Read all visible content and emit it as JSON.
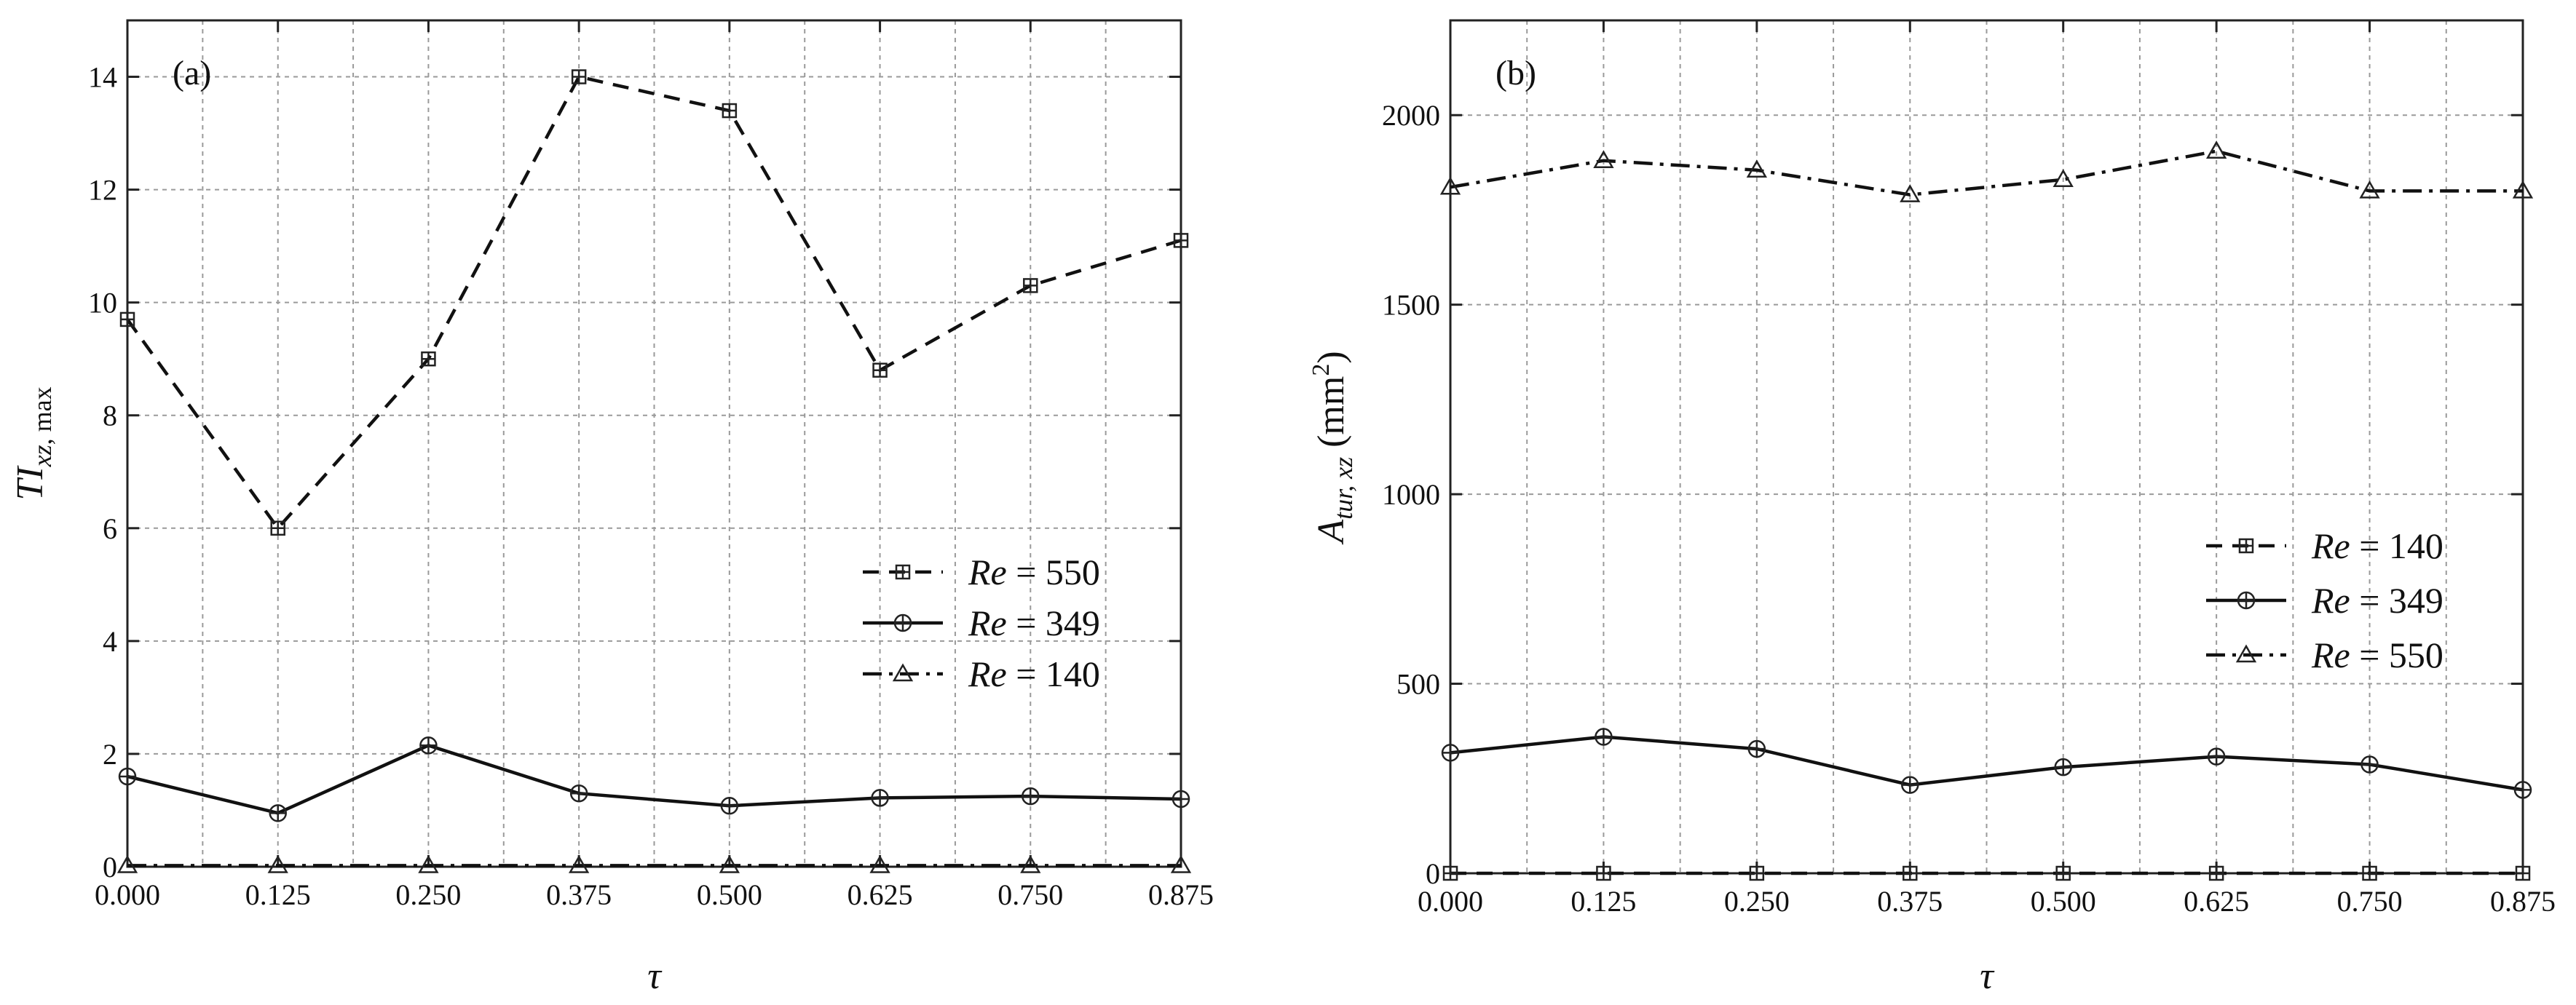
{
  "chart_data": [
    {
      "type": "line",
      "panel_label": "(a)",
      "xlabel": "τ",
      "ylabel": "TI_xz,max",
      "ylabel_main": "TI",
      "ylabel_sub": "xz",
      "ylabel_tail": ", max",
      "x": [
        0.0,
        0.125,
        0.25,
        0.375,
        0.5,
        0.625,
        0.75,
        0.875
      ],
      "x_tick_labels": [
        "0.000",
        "0.125",
        "0.250",
        "0.375",
        "0.500",
        "0.625",
        "0.750",
        "0.875"
      ],
      "xlim": [
        0,
        0.875
      ],
      "ylim": [
        0,
        15
      ],
      "y_ticks": [
        0,
        2,
        4,
        6,
        8,
        10,
        12,
        14
      ],
      "y_tick_labels": [
        "0",
        "2",
        "4",
        "6",
        "8",
        "10",
        "12",
        "14"
      ],
      "grid": true,
      "legend_position": "center-right",
      "series": [
        {
          "name": "Re = 550",
          "re_value": "550",
          "style": "dashed",
          "marker": "square-plus",
          "values": [
            9.7,
            6.0,
            9.0,
            14.0,
            13.4,
            8.8,
            10.3,
            11.1
          ]
        },
        {
          "name": "Re = 349",
          "re_value": "349",
          "style": "solid",
          "marker": "circle-plus",
          "values": [
            1.6,
            0.95,
            2.15,
            1.3,
            1.08,
            1.22,
            1.25,
            1.2
          ]
        },
        {
          "name": "Re = 140",
          "re_value": "140",
          "style": "dashdot",
          "marker": "triangle",
          "values": [
            0.02,
            0.02,
            0.02,
            0.02,
            0.02,
            0.02,
            0.02,
            0.02
          ]
        }
      ]
    },
    {
      "type": "line",
      "panel_label": "(b)",
      "xlabel": "τ",
      "ylabel": "A_tur,xz (mm²)",
      "ylabel_main": "A",
      "ylabel_sub": "tur, xz",
      "ylabel_unit": " (mm",
      "ylabel_sup": "2",
      "ylabel_close": ")",
      "x": [
        0.0,
        0.125,
        0.25,
        0.375,
        0.5,
        0.625,
        0.75,
        0.875
      ],
      "x_tick_labels": [
        "0.000",
        "0.125",
        "0.250",
        "0.375",
        "0.500",
        "0.625",
        "0.750",
        "0.875"
      ],
      "xlim": [
        0,
        0.875
      ],
      "ylim": [
        0,
        2250
      ],
      "y_ticks": [
        0,
        500,
        1000,
        1500,
        2000
      ],
      "y_tick_labels": [
        "0",
        "500",
        "1000",
        "1500",
        "2000"
      ],
      "grid": true,
      "legend_position": "center-right",
      "series": [
        {
          "name": "Re = 140",
          "re_value": "140",
          "style": "dashed",
          "marker": "square-plus",
          "values": [
            0,
            0,
            0,
            0,
            0,
            0,
            0,
            0
          ]
        },
        {
          "name": "Re = 349",
          "re_value": "349",
          "style": "solid",
          "marker": "circle-plus",
          "values": [
            318,
            360,
            328,
            233,
            280,
            308,
            287,
            220
          ]
        },
        {
          "name": "Re = 550",
          "re_value": "550",
          "style": "dashdot",
          "marker": "triangle",
          "values": [
            1810,
            1880,
            1855,
            1790,
            1830,
            1905,
            1800,
            1800
          ]
        }
      ]
    }
  ]
}
